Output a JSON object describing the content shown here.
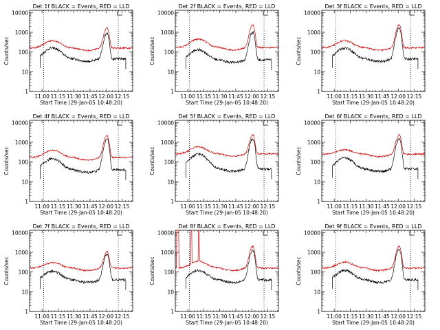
{
  "chart_data": {
    "type": "line",
    "xlabel": "Start Time (29-Jan-05 10:48:20)",
    "ylabel": "Counts/sec",
    "x_tick_labels": [
      "11:00",
      "11:15",
      "11:30",
      "11:45",
      "12:00",
      "12:15"
    ],
    "x_tick_minutes": [
      660,
      675,
      690,
      705,
      720,
      735
    ],
    "xlim_minutes": [
      648.3,
      745
    ],
    "y_tick_labels": [
      "1",
      "10",
      "100",
      "1000",
      "10000"
    ],
    "y_tick_values": [
      1,
      10,
      100,
      1000,
      10000
    ],
    "ylim": [
      1,
      13000
    ],
    "yscale": "log",
    "series_colors": {
      "events": "#000000",
      "lld": "#cc0000"
    },
    "panels": [
      {
        "title": "Det 1f BLACK = Events, RED = LLD",
        "vlines_minutes": [
          661.5,
          731.5
        ],
        "lld": {
          "base": 160,
          "bump": 380,
          "peak": 1500,
          "start": 648.3,
          "end": 745
        },
        "events": {
          "base": 45,
          "bump": 160,
          "peak": 900,
          "start": 658.3,
          "end": 738.5
        }
      },
      {
        "title": "Det 2f BLACK = Events, RED = LLD",
        "vlines_minutes": [
          661.5,
          731.5
        ],
        "lld": {
          "base": 170,
          "bump": 450,
          "peak": 2200,
          "start": 648.3,
          "end": 745
        },
        "events": {
          "base": 40,
          "bump": 130,
          "peak": 1000,
          "start": 658.3,
          "end": 738.5
        }
      },
      {
        "title": "Det 3f BLACK = Events, RED = LLD",
        "vlines_minutes": [
          661.5,
          731.5
        ],
        "lld": {
          "base": 165,
          "bump": 380,
          "peak": 2200,
          "start": 648.3,
          "end": 745
        },
        "events": {
          "base": 45,
          "bump": 160,
          "peak": 1600,
          "start": 658.3,
          "end": 738.5
        }
      },
      {
        "title": "Det 4f BLACK = Events, RED = LLD",
        "vlines_minutes": [
          661.5,
          731.5
        ],
        "lld": {
          "base": 170,
          "bump": 400,
          "peak": 2000,
          "start": 648.3,
          "end": 745
        },
        "events": {
          "base": 40,
          "bump": 150,
          "peak": 1400,
          "start": 658.3,
          "end": 738.5
        }
      },
      {
        "title": "Det 5f BLACK = Events, RED = LLD",
        "vlines_minutes": [
          661.5,
          731.5
        ],
        "lld": {
          "base": 260,
          "bump": 600,
          "peak": 2100,
          "start": 648.3,
          "end": 745
        },
        "events": {
          "base": 45,
          "bump": 260,
          "peak": 1500,
          "start": 658.3,
          "end": 738.5
        }
      },
      {
        "title": "Det 6f BLACK = Events, RED = LLD",
        "vlines_minutes": [
          661.5,
          731.5
        ],
        "lld": {
          "base": 250,
          "bump": 420,
          "peak": 2100,
          "start": 648.3,
          "end": 745
        },
        "events": {
          "base": 45,
          "bump": 160,
          "peak": 1500,
          "start": 658.3,
          "end": 738.5
        }
      },
      {
        "title": "Det 7f BLACK = Events, RED = LLD",
        "vlines_minutes": [
          661.5,
          731.5
        ],
        "lld": {
          "base": 160,
          "bump": 300,
          "peak": 900,
          "start": 648.3,
          "end": 745
        },
        "events": {
          "base": 40,
          "bump": 110,
          "peak": 750,
          "start": 658.3,
          "end": 738.5
        }
      },
      {
        "title": "Det 8f BLACK = Events, RED = LLD",
        "vlines_minutes": [
          661.5,
          731.5
        ],
        "lld": {
          "base": 160,
          "bump": 350,
          "peak": 1800,
          "start": 648.3,
          "end": 745,
          "saturated_ranges": [
            [
              649.5,
              651.5
            ],
            [
              663,
              664
            ],
            [
              670,
              671
            ]
          ]
        },
        "events": {
          "base": 40,
          "bump": 120,
          "peak": 1200,
          "start": 658.3,
          "end": 738.5
        }
      },
      {
        "title": "Det 9f BLACK = Events, RED = LLD",
        "vlines_minutes": [
          661.5,
          731.5
        ],
        "lld": {
          "base": 160,
          "bump": 320,
          "peak": 1800,
          "start": 648.3,
          "end": 745
        },
        "events": {
          "base": 40,
          "bump": 120,
          "peak": 1400,
          "start": 658.3,
          "end": 738.5
        }
      }
    ]
  }
}
